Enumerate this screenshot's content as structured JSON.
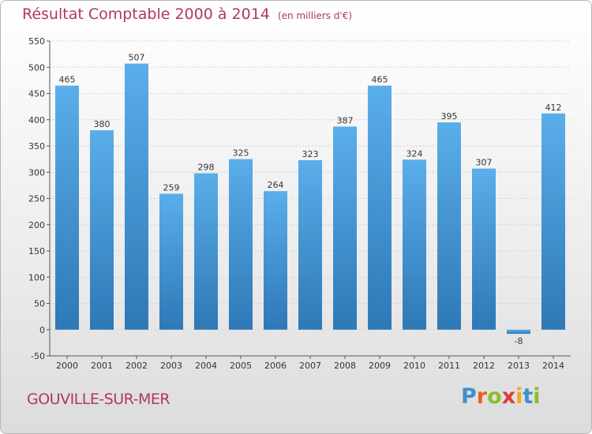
{
  "title": "Résultat Comptable 2000 à 2014",
  "subtitle": "(en milliers d'€)",
  "commune": "GOUVILLE-SUR-MER",
  "logo": {
    "text": "Proxiti",
    "letters": [
      "P",
      "r",
      "o",
      "x",
      "i",
      "t",
      "i"
    ],
    "colors": [
      "#3d8fd0",
      "#e95d25",
      "#8bbd2b",
      "#e03a3a",
      "#f4a81d",
      "#3d8fd0",
      "#8bbd2b"
    ]
  },
  "colors": {
    "bar_top": "#5aaeea",
    "bar_bottom": "#2e78b6",
    "title": "#b03a56"
  },
  "chart_data": {
    "type": "bar",
    "title": "Résultat Comptable 2000 à 2014",
    "subtitle": "(en milliers d'€)",
    "categories": [
      "2000",
      "2001",
      "2002",
      "2003",
      "2004",
      "2005",
      "2006",
      "2007",
      "2008",
      "2009",
      "2010",
      "2011",
      "2012",
      "2013",
      "2014"
    ],
    "values": [
      465,
      380,
      507,
      259,
      298,
      325,
      264,
      323,
      387,
      465,
      324,
      395,
      307,
      -8,
      412
    ],
    "ylim": [
      -50,
      550
    ],
    "yticks": [
      -50,
      0,
      50,
      100,
      150,
      200,
      250,
      300,
      350,
      400,
      450,
      500,
      550
    ],
    "grid": true,
    "xlabel": "",
    "ylabel": ""
  }
}
